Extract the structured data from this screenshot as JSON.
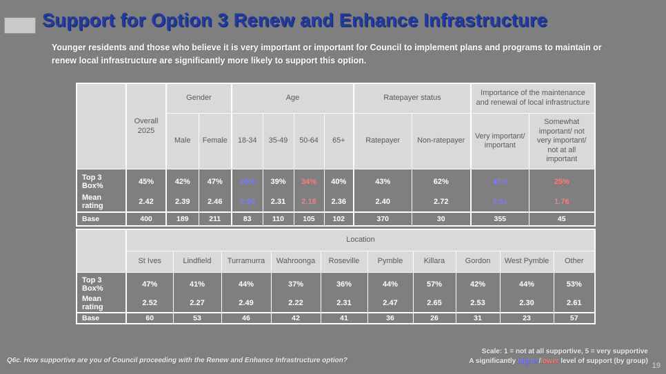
{
  "slide": {
    "title": "Support for Option 3 Renew and Enhance Infrastructure",
    "subtitle": "Younger residents and those who believe it is very important or important for Council to implement plans and programs to maintain or renew local infrastructure are significantly more likely to support this option.",
    "page_number": "19"
  },
  "colors": {
    "background": "#7F7F7F",
    "title_blue": "#1F3BA5",
    "accent_bar": "#C9C9C9",
    "header_bg": "#D9D9D9",
    "header_text": "#595959",
    "sig_higher": "#7B7BFF",
    "sig_lower": "#FF7B7B"
  },
  "demographics_table": {
    "corner_label": "",
    "overall_header": "Overall 2025",
    "groups": [
      {
        "label": "Gender",
        "cols": [
          "Male",
          "Female"
        ]
      },
      {
        "label": "Age",
        "cols": [
          "18-34",
          "35-49",
          "50-64",
          "65+"
        ]
      },
      {
        "label": "Ratepayer status",
        "cols": [
          "Ratepayer",
          "Non-ratepayer"
        ]
      },
      {
        "label": "Importance of the maintenance and renewal of local infrastructure",
        "cols": [
          "Very important/ important",
          "Somewhat important/ not very important/ not at all important"
        ]
      }
    ],
    "rows": [
      {
        "label": "Top 3 Box%",
        "cells": [
          {
            "text": "45%"
          },
          {
            "text": "42%"
          },
          {
            "text": "47%"
          },
          {
            "text": "70%",
            "sig": "higher"
          },
          {
            "text": "39%"
          },
          {
            "text": "34%",
            "sig": "lower"
          },
          {
            "text": "40%"
          },
          {
            "text": "43%"
          },
          {
            "text": "62%"
          },
          {
            "text": "47%",
            "sig": "higher"
          },
          {
            "text": "25%",
            "sig": "lower"
          }
        ]
      },
      {
        "label": "Mean rating",
        "cells": [
          {
            "text": "2.42"
          },
          {
            "text": "2.39"
          },
          {
            "text": "2.46"
          },
          {
            "text": "2.96",
            "sig": "higher"
          },
          {
            "text": "2.31"
          },
          {
            "text": "2.18",
            "sig": "lower"
          },
          {
            "text": "2.36"
          },
          {
            "text": "2.40"
          },
          {
            "text": "2.72"
          },
          {
            "text": "2.51",
            "sig": "higher"
          },
          {
            "text": "1.76",
            "sig": "lower"
          }
        ]
      },
      {
        "label": "Base",
        "cells": [
          {
            "text": "400"
          },
          {
            "text": "189"
          },
          {
            "text": "211"
          },
          {
            "text": "83"
          },
          {
            "text": "110"
          },
          {
            "text": "105"
          },
          {
            "text": "102"
          },
          {
            "text": "370"
          },
          {
            "text": "30"
          },
          {
            "text": "355"
          },
          {
            "text": "45"
          }
        ]
      }
    ]
  },
  "location_table": {
    "corner_label": "",
    "group_label": "Location",
    "columns": [
      "St Ives",
      "Lindfield",
      "Turramurra",
      "Wahroonga",
      "Roseville",
      "Pymble",
      "Killara",
      "Gordon",
      "West Pymble",
      "Other"
    ],
    "rows": [
      {
        "label": "Top 3 Box%",
        "cells": [
          {
            "text": "47%"
          },
          {
            "text": "41%"
          },
          {
            "text": "44%"
          },
          {
            "text": "37%"
          },
          {
            "text": "36%"
          },
          {
            "text": "44%"
          },
          {
            "text": "57%"
          },
          {
            "text": "42%"
          },
          {
            "text": "44%"
          },
          {
            "text": "53%"
          }
        ]
      },
      {
        "label": "Mean rating",
        "cells": [
          {
            "text": "2.52"
          },
          {
            "text": "2.27"
          },
          {
            "text": "2.49"
          },
          {
            "text": "2.22"
          },
          {
            "text": "2.31"
          },
          {
            "text": "2.47"
          },
          {
            "text": "2.65"
          },
          {
            "text": "2.53"
          },
          {
            "text": "2.30"
          },
          {
            "text": "2.61"
          }
        ]
      },
      {
        "label": "Base",
        "cells": [
          {
            "text": "60"
          },
          {
            "text": "53"
          },
          {
            "text": "46"
          },
          {
            "text": "42"
          },
          {
            "text": "41"
          },
          {
            "text": "36"
          },
          {
            "text": "26"
          },
          {
            "text": "31"
          },
          {
            "text": "23"
          },
          {
            "text": "57"
          }
        ]
      }
    ]
  },
  "footer": {
    "question": "Q6c. How supportive are you of Council proceeding with the Renew and Enhance Infrastructure option?",
    "scale_note": "Scale: 1 = not at all supportive, 5 = very supportive",
    "significance_prefix": "A significantly ",
    "significance_higher": "higher",
    "significance_separator": "/",
    "significance_lower": "lower",
    "significance_suffix": " level of support (by group)"
  }
}
